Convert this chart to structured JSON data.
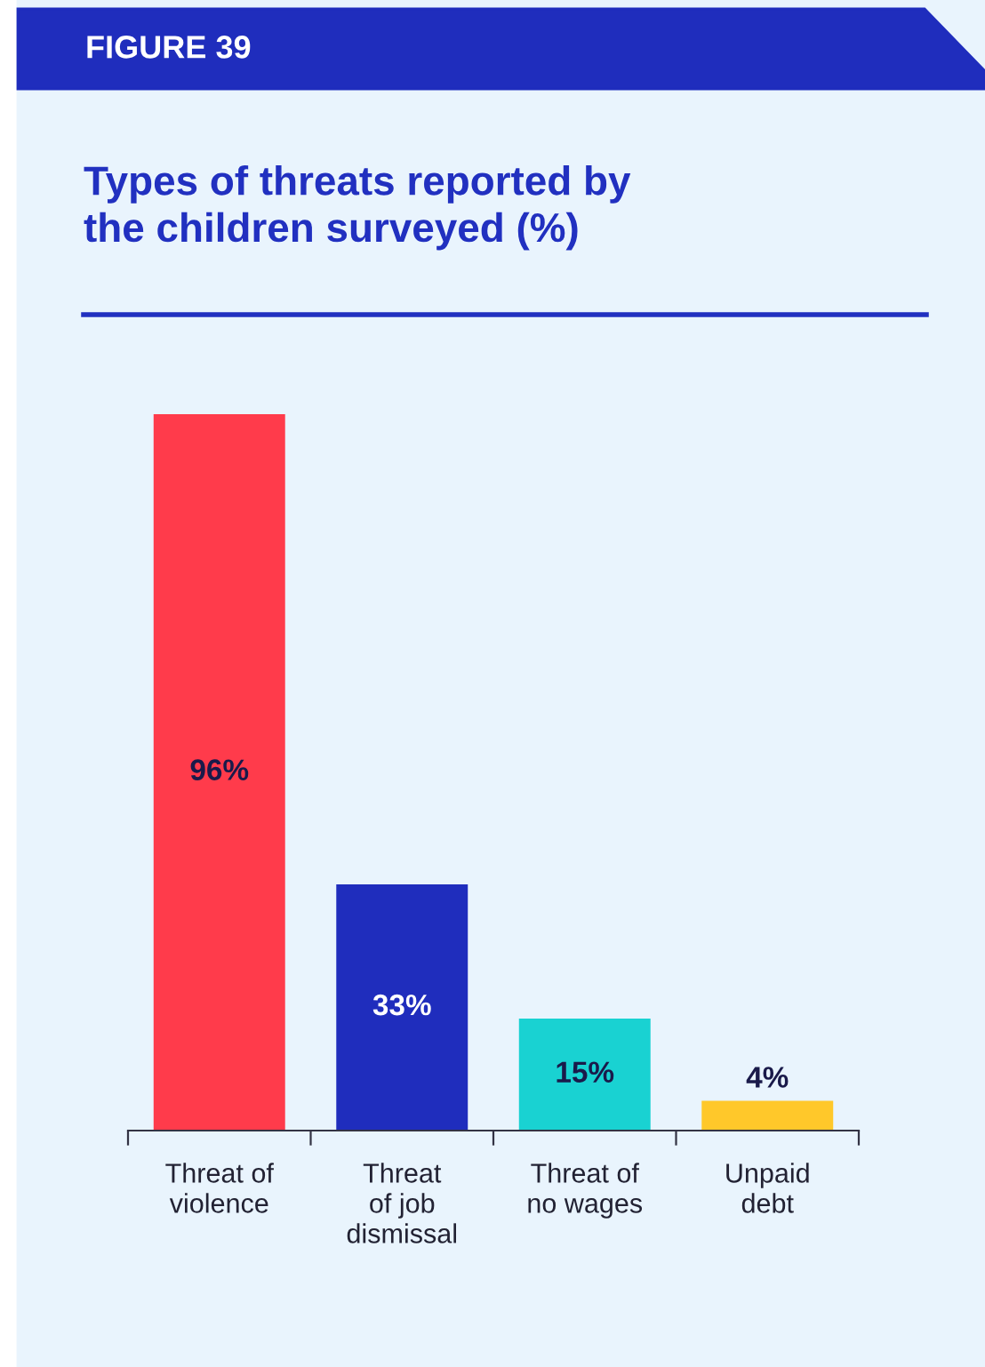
{
  "chart_data": {
    "type": "bar",
    "title": "Types of threats reported by\nthe children surveyed (%)",
    "annotations": [
      "FIGURE 39"
    ],
    "categories": [
      "Threat of\nviolence",
      "Threat\nof job\ndismissal",
      "Threat of\nno wages",
      "Unpaid\ndebt"
    ],
    "values": [
      96,
      33,
      15,
      4
    ],
    "colors": [
      "#ff3b4b",
      "#1f2dbd",
      "#19d2d2",
      "#ffc82a"
    ],
    "value_labels": [
      "96%",
      "33%",
      "15%",
      "4%"
    ]
  }
}
